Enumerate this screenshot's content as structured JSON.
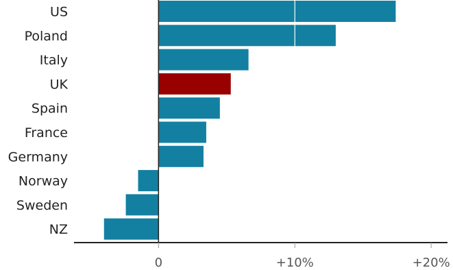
{
  "chart_data": {
    "type": "bar",
    "orientation": "horizontal",
    "categories": [
      "US",
      "Poland",
      "Italy",
      "UK",
      "Spain",
      "France",
      "Germany",
      "Norway",
      "Sweden",
      "NZ"
    ],
    "values": [
      17.4,
      13.0,
      6.6,
      5.3,
      4.5,
      3.5,
      3.3,
      -1.5,
      -2.4,
      -4.0
    ],
    "highlight": "UK",
    "xlim": [
      -6.2,
      21.2
    ],
    "x_ticks": [
      0,
      10,
      20
    ],
    "x_tick_labels": [
      "0",
      "+10%",
      "+20%"
    ],
    "grid": "vertical gridlines drawn over bars",
    "title": "",
    "xlabel": "",
    "ylabel": ""
  },
  "colors": {
    "bar": "#1380a1",
    "highlight": "#990000",
    "axis": "#222222",
    "gridline": "#ffffff"
  }
}
